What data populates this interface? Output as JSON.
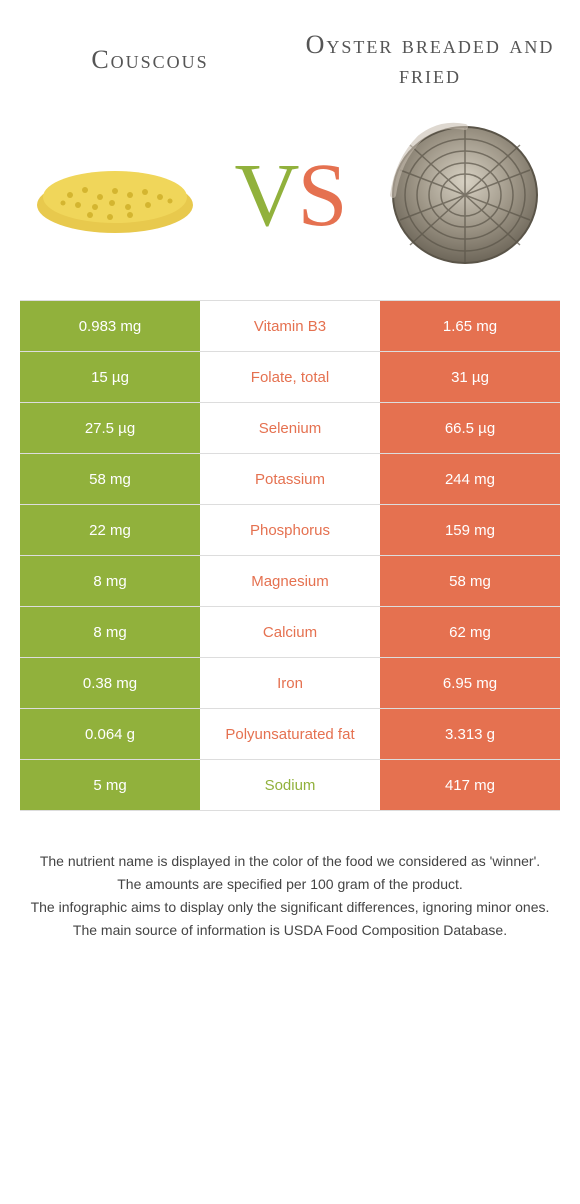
{
  "colors": {
    "green": "#91b13c",
    "orange": "#e57150",
    "white": "#ffffff",
    "text": "#555555"
  },
  "foods": {
    "left": {
      "name": "Couscous"
    },
    "right": {
      "name": "Oyster breaded and fried"
    }
  },
  "vs": {
    "v": "V",
    "s": "S"
  },
  "rows": [
    {
      "left": "0.983 mg",
      "label": "Vitamin B3",
      "right": "1.65 mg",
      "winner": "right"
    },
    {
      "left": "15 µg",
      "label": "Folate, total",
      "right": "31 µg",
      "winner": "right"
    },
    {
      "left": "27.5 µg",
      "label": "Selenium",
      "right": "66.5 µg",
      "winner": "right"
    },
    {
      "left": "58 mg",
      "label": "Potassium",
      "right": "244 mg",
      "winner": "right"
    },
    {
      "left": "22 mg",
      "label": "Phosphorus",
      "right": "159 mg",
      "winner": "right"
    },
    {
      "left": "8 mg",
      "label": "Magnesium",
      "right": "58 mg",
      "winner": "right"
    },
    {
      "left": "8 mg",
      "label": "Calcium",
      "right": "62 mg",
      "winner": "right"
    },
    {
      "left": "0.38 mg",
      "label": "Iron",
      "right": "6.95 mg",
      "winner": "right"
    },
    {
      "left": "0.064 g",
      "label": "Polyunsaturated fat",
      "right": "3.313 g",
      "winner": "right"
    },
    {
      "left": "5 mg",
      "label": "Sodium",
      "right": "417 mg",
      "winner": "left"
    }
  ],
  "footer": [
    "The nutrient name is displayed in the color of the food we considered as 'winner'.",
    "The amounts are specified per 100 gram of the product.",
    "The infographic aims to display only the significant differences, ignoring minor ones.",
    "The main source of information is USDA Food Composition Database."
  ]
}
